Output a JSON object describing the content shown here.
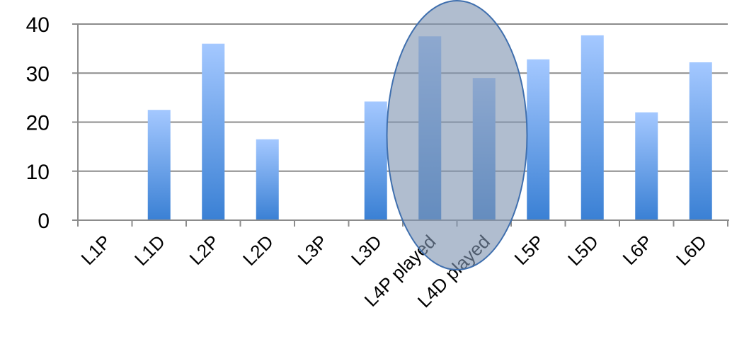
{
  "chart_data": {
    "type": "bar",
    "categories": [
      "L1P",
      "L1D",
      "L2P",
      "L2D",
      "L3P",
      "L3D",
      "L4P played",
      "L4D played",
      "L5P",
      "L5D",
      "L6P",
      "L6D"
    ],
    "values": [
      0,
      22.5,
      36,
      16.5,
      0,
      24.2,
      37.5,
      29,
      32.8,
      37.7,
      22,
      32.2
    ],
    "ylim": [
      0,
      40
    ],
    "yticks": [
      0,
      10,
      20,
      30,
      40
    ],
    "title": "",
    "xlabel": "",
    "ylabel": "",
    "grid": true,
    "legend": "none",
    "colors": {
      "bar_top": "#a4c8ff",
      "bar_bottom": "#3a80d4",
      "gridline": "#8c8c8c",
      "axis": "#8c8c8c",
      "highlight_fill": "#7f95b1",
      "highlight_stroke": "#3f6fae"
    },
    "highlight": {
      "shape": "ellipse",
      "covers": [
        "L4P played",
        "L4D played"
      ]
    }
  }
}
